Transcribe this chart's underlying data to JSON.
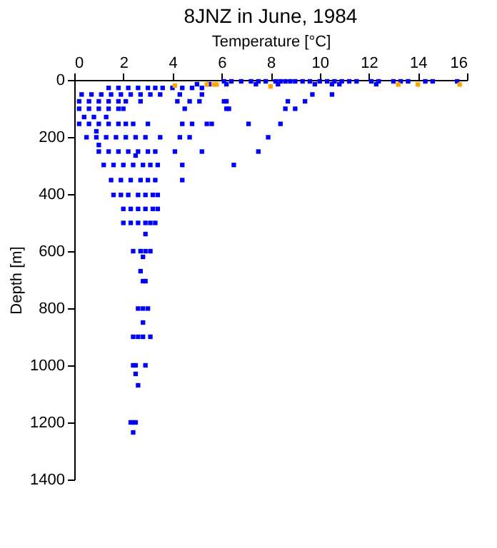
{
  "chart_data": {
    "type": "scatter",
    "title": "8JNZ in June, 1984",
    "xlabel": "Temperature [°C]",
    "ylabel": "Depth [m]",
    "xlim": [
      0,
      16
    ],
    "xticks": [
      0,
      2,
      4,
      6,
      8,
      10,
      12,
      14,
      16
    ],
    "ylim": [
      1400,
      0
    ],
    "yticks": [
      0,
      200,
      400,
      600,
      800,
      1000,
      1200,
      1400
    ],
    "grid": false,
    "marker": "square",
    "series": [
      {
        "color": "#0000ff",
        "x": [
          6.1,
          6.4,
          6.8,
          7.2,
          7.5,
          7.8,
          8.2,
          8.4,
          8.6,
          8.8,
          9.0,
          9.3,
          9.6,
          10.0,
          10.3,
          10.6,
          10.9,
          11.2,
          11.5,
          12.1,
          12.4,
          13.0,
          13.3,
          13.6,
          14.3,
          14.6,
          15.6,
          5.0,
          5.5,
          6.2,
          7.4,
          8.3,
          9.8,
          10.5,
          10.8,
          12.3,
          1.4,
          1.8,
          2.2,
          2.6,
          3.0,
          3.3,
          3.6,
          4.0,
          4.4,
          4.8,
          5.2,
          0.3,
          0.7,
          1.1,
          1.5,
          1.9,
          2.3,
          2.7,
          3.1,
          3.5,
          4.3,
          5.2,
          9.7,
          10.5,
          0.2,
          0.6,
          1.0,
          1.4,
          1.8,
          2.1,
          2.7,
          4.2,
          4.7,
          5.1,
          6.1,
          6.2,
          8.7,
          9.4,
          0.2,
          0.6,
          1.0,
          1.4,
          1.8,
          2.0,
          4.5,
          6.2,
          6.3,
          8.6,
          9.0,
          0.4,
          0.8,
          1.3,
          0.2,
          0.6,
          1.0,
          1.4,
          1.8,
          2.1,
          2.4,
          3.0,
          4.4,
          4.8,
          5.4,
          5.6,
          7.1,
          8.4,
          0.9,
          0.5,
          0.9,
          1.3,
          1.7,
          2.1,
          2.5,
          2.9,
          3.5,
          4.3,
          4.7,
          7.9,
          1.0,
          1.0,
          1.4,
          1.8,
          2.2,
          2.6,
          3.0,
          3.3,
          4.1,
          5.2,
          7.5,
          2.5,
          1.2,
          1.6,
          2.0,
          2.4,
          2.8,
          3.1,
          3.4,
          4.4,
          6.5,
          1.5,
          1.9,
          2.3,
          2.7,
          3.0,
          3.3,
          4.4,
          1.6,
          1.9,
          2.2,
          2.6,
          2.9,
          3.2,
          3.4,
          2.0,
          2.3,
          2.6,
          2.9,
          3.2,
          3.4,
          2.0,
          2.3,
          2.6,
          2.9,
          3.1,
          3.3,
          2.9,
          2.4,
          2.7,
          2.9,
          3.1,
          2.8,
          2.7,
          2.8,
          2.9,
          2.6,
          2.8,
          3.0,
          2.8,
          2.4,
          2.6,
          2.8,
          3.1,
          2.4,
          2.5,
          2.9,
          2.5,
          2.6,
          2.3,
          2.4,
          2.5,
          2.4
        ],
        "values": [
          5,
          5,
          5,
          5,
          5,
          5,
          5,
          5,
          5,
          5,
          5,
          5,
          5,
          5,
          5,
          5,
          5,
          5,
          5,
          5,
          5,
          5,
          5,
          5,
          5,
          5,
          5,
          15,
          15,
          15,
          15,
          15,
          15,
          15,
          15,
          15,
          28,
          28,
          28,
          28,
          28,
          28,
          28,
          28,
          28,
          28,
          28,
          51,
          51,
          51,
          51,
          51,
          51,
          51,
          51,
          51,
          51,
          51,
          51,
          51,
          75,
          75,
          75,
          75,
          75,
          75,
          75,
          75,
          75,
          75,
          75,
          75,
          75,
          75,
          101,
          101,
          101,
          101,
          101,
          101,
          101,
          101,
          101,
          101,
          101,
          130,
          130,
          130,
          154,
          154,
          154,
          154,
          154,
          154,
          154,
          154,
          154,
          154,
          154,
          154,
          154,
          154,
          180,
          201,
          201,
          201,
          201,
          201,
          201,
          201,
          201,
          201,
          201,
          201,
          228,
          251,
          251,
          251,
          251,
          251,
          251,
          251,
          251,
          251,
          251,
          265,
          298,
          298,
          298,
          298,
          298,
          298,
          298,
          298,
          298,
          351,
          351,
          351,
          351,
          351,
          351,
          351,
          403,
          403,
          403,
          403,
          403,
          403,
          403,
          452,
          452,
          452,
          452,
          452,
          452,
          501,
          501,
          501,
          501,
          501,
          501,
          540,
          600,
          600,
          600,
          600,
          620,
          670,
          705,
          705,
          801,
          801,
          801,
          850,
          900,
          900,
          900,
          900,
          1000,
          1000,
          1000,
          1030,
          1070,
          1200,
          1200,
          1200,
          1235
        ]
      },
      {
        "color": "#ffa500",
        "x": [
          4.1,
          5.4,
          5.7,
          5.8,
          8.0,
          13.2,
          14.0,
          15.7
        ],
        "values": [
          20,
          16,
          16,
          16,
          23,
          16,
          16,
          16
        ]
      }
    ]
  }
}
